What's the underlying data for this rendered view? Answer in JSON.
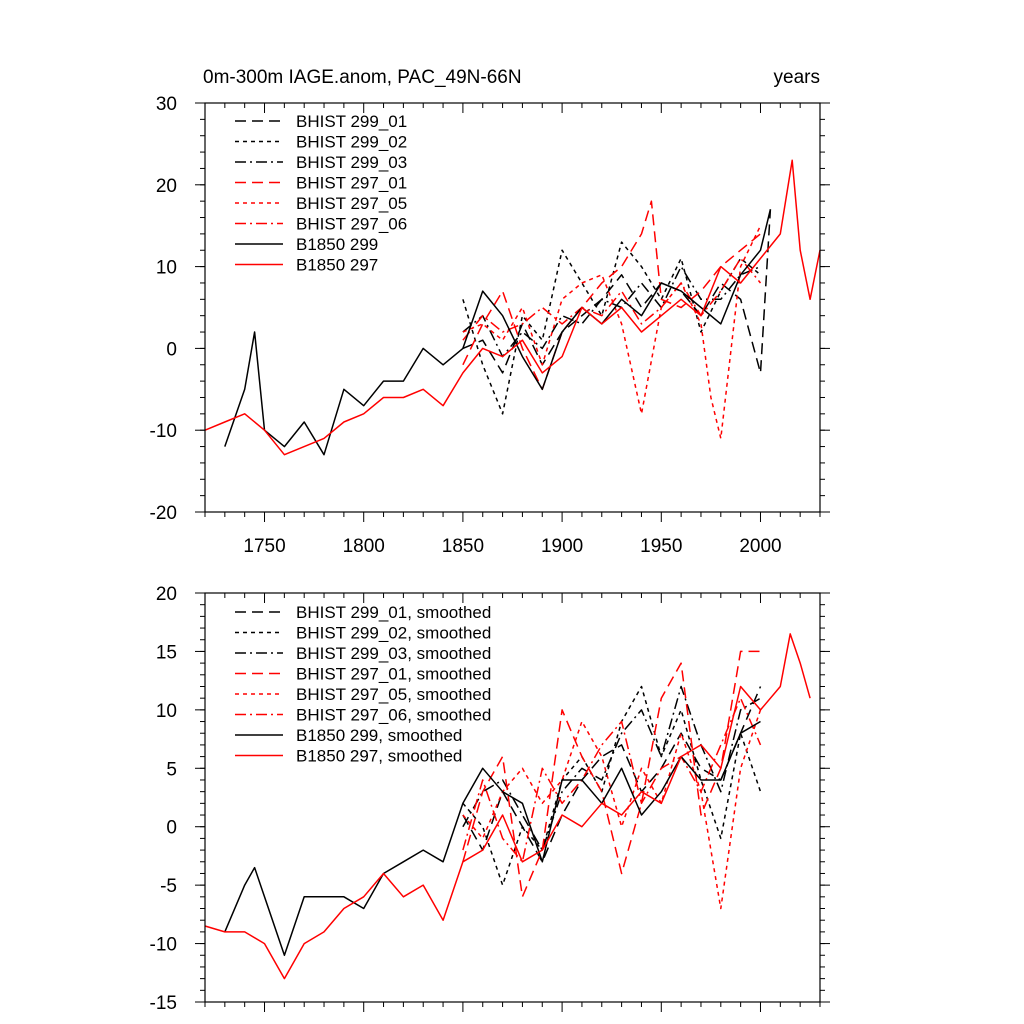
{
  "styles": {
    "line_dashes": {
      "BHIST_299_01": "11,6",
      "BHIST_299_02": "4,4",
      "BHIST_299_03": "11,4,2,4",
      "BHIST_297_01": "11,6",
      "BHIST_297_05": "4,4",
      "BHIST_297_06": "11,4,2,4",
      "B1850_299": "",
      "B1850_297": ""
    },
    "colors": {
      "black": "#000000",
      "red": "#ff0000"
    }
  },
  "chart_data": [
    {
      "type": "line",
      "title": "0m-300m IAGE.anom, PAC_49N-66N",
      "title_right": "years",
      "xlim": [
        1720,
        2030
      ],
      "ylim": [
        -20,
        30
      ],
      "xticks": [
        1750,
        1800,
        1850,
        1900,
        1950,
        2000
      ],
      "xtick_labels": [
        "1750",
        "1800",
        "1850",
        "1900",
        "1950",
        "2000"
      ],
      "yticks": [
        -20,
        -10,
        0,
        10,
        20,
        30
      ],
      "ytick_labels": [
        "-20",
        "-10",
        "0",
        "10",
        "20",
        "30"
      ],
      "legend_position": "top-left",
      "series": [
        {
          "name": "BHIST 299_01",
          "color": "#000000",
          "style": "dashed",
          "x": [
            1850,
            1860,
            1870,
            1880,
            1890,
            1900,
            1910,
            1920,
            1930,
            1940,
            1950,
            1960,
            1970,
            1980,
            1990,
            2000,
            2005
          ],
          "y": [
            0,
            1,
            -3,
            3,
            -2,
            2,
            4,
            6,
            9,
            5,
            8,
            7,
            4,
            8,
            6,
            -3,
            17
          ]
        },
        {
          "name": "BHIST 299_02",
          "color": "#000000",
          "style": "dotted",
          "x": [
            1850,
            1860,
            1870,
            1880,
            1890,
            1900,
            1910,
            1920,
            1930,
            1940,
            1950,
            1960,
            1970,
            1980,
            1990,
            2000
          ],
          "y": [
            6,
            -2,
            -8,
            4,
            1,
            12,
            8,
            4,
            13,
            10,
            6,
            11,
            2,
            7,
            11,
            9
          ]
        },
        {
          "name": "BHIST 299_03",
          "color": "#000000",
          "style": "dashdot",
          "x": [
            1850,
            1860,
            1870,
            1880,
            1890,
            1900,
            1910,
            1920,
            1930,
            1940,
            1950,
            1960,
            1970,
            1980,
            1990,
            2000
          ],
          "y": [
            2,
            4,
            -1,
            2,
            0,
            4,
            3,
            6,
            5,
            8,
            5,
            10,
            6,
            6,
            9,
            10
          ]
        },
        {
          "name": "BHIST 297_01",
          "color": "#ff0000",
          "style": "dashed",
          "x": [
            1850,
            1860,
            1870,
            1880,
            1890,
            1900,
            1910,
            1920,
            1930,
            1940,
            1945,
            1950,
            1960,
            1970,
            1980,
            1990,
            2000
          ],
          "y": [
            -2,
            3,
            7,
            0,
            -5,
            2,
            5,
            8,
            10,
            14,
            18,
            6,
            5,
            7,
            10,
            12,
            14
          ]
        },
        {
          "name": "BHIST 297_05",
          "color": "#ff0000",
          "style": "dotted",
          "x": [
            1850,
            1860,
            1870,
            1880,
            1890,
            1900,
            1910,
            1920,
            1930,
            1940,
            1950,
            1960,
            1970,
            1975,
            1980,
            1990,
            2000
          ],
          "y": [
            2,
            3,
            1,
            5,
            -2,
            6,
            8,
            9,
            3,
            -8,
            5,
            8,
            3,
            -6,
            -11,
            10,
            15
          ]
        },
        {
          "name": "BHIST 297_06",
          "color": "#ff0000",
          "style": "dashdot",
          "x": [
            1850,
            1860,
            1870,
            1880,
            1890,
            1900,
            1910,
            1920,
            1930,
            1940,
            1950,
            1960,
            1970,
            1980,
            1990,
            2000
          ],
          "y": [
            1,
            4,
            2,
            3,
            5,
            3,
            5,
            4,
            7,
            3,
            5,
            8,
            4,
            7,
            11,
            8
          ]
        },
        {
          "name": "B1850 299",
          "color": "#000000",
          "style": "solid",
          "x": [
            1730,
            1740,
            1745,
            1750,
            1760,
            1770,
            1780,
            1790,
            1800,
            1810,
            1820,
            1830,
            1840,
            1850,
            1860,
            1870,
            1880,
            1890,
            1900,
            1910,
            1920,
            1930,
            1940,
            1950,
            1960,
            1970,
            1980,
            1990,
            2000,
            2005
          ],
          "y": [
            -12,
            -5,
            2,
            -10,
            -12,
            -9,
            -13,
            -5,
            -7,
            -4,
            -4,
            0,
            -2,
            0,
            7,
            4,
            -1,
            -5,
            2,
            5,
            3,
            6,
            4,
            8,
            7,
            5,
            3,
            9,
            12,
            17
          ]
        },
        {
          "name": "B1850 297",
          "color": "#ff0000",
          "style": "solid",
          "x": [
            1720,
            1730,
            1740,
            1750,
            1760,
            1770,
            1780,
            1790,
            1800,
            1810,
            1820,
            1830,
            1840,
            1850,
            1860,
            1870,
            1880,
            1890,
            1900,
            1910,
            1920,
            1930,
            1940,
            1950,
            1960,
            1970,
            1980,
            1990,
            2000,
            2010,
            2016,
            2020,
            2025,
            2030
          ],
          "y": [
            -10,
            -9,
            -8,
            -10,
            -13,
            -12,
            -11,
            -9,
            -8,
            -6,
            -6,
            -5,
            -7,
            -3,
            0,
            -1,
            1,
            -3,
            -1,
            5,
            3,
            5,
            2,
            4,
            6,
            4,
            10,
            8,
            11,
            14,
            23,
            12,
            6,
            12
          ]
        }
      ]
    },
    {
      "type": "line",
      "xlim": [
        1720,
        2030
      ],
      "ylim": [
        -15,
        20
      ],
      "xticks": [
        1750,
        1800,
        1850,
        1900,
        1950,
        2000
      ],
      "yticks": [
        -15,
        -10,
        -5,
        0,
        5,
        10,
        15,
        20
      ],
      "ytick_labels": [
        "-15",
        "-10",
        "-5",
        "0",
        "5",
        "10",
        "15",
        "20"
      ],
      "legend_position": "top-left",
      "series": [
        {
          "name": "BHIST 299_01, smoothed",
          "color": "#000000",
          "style": "dashed",
          "x": [
            1850,
            1860,
            1870,
            1880,
            1890,
            1900,
            1910,
            1920,
            1930,
            1940,
            1950,
            1960,
            1970,
            1980,
            1990,
            2000
          ],
          "y": [
            1,
            -2,
            3,
            0,
            -3,
            1,
            4,
            6,
            7,
            3,
            5,
            8,
            5,
            4,
            8,
            12
          ]
        },
        {
          "name": "BHIST 299_02, smoothed",
          "color": "#000000",
          "style": "dotted",
          "x": [
            1850,
            1860,
            1870,
            1880,
            1890,
            1900,
            1910,
            1920,
            1930,
            1940,
            1950,
            1960,
            1970,
            1980,
            1990,
            2000
          ],
          "y": [
            2,
            0,
            -5,
            0,
            -2,
            4,
            6,
            3,
            9,
            12,
            6,
            10,
            4,
            -1,
            8,
            3
          ]
        },
        {
          "name": "BHIST 299_03, smoothed",
          "color": "#000000",
          "style": "dashdot",
          "x": [
            1850,
            1860,
            1870,
            1880,
            1890,
            1900,
            1910,
            1920,
            1930,
            1940,
            1950,
            1960,
            1970,
            1980,
            1990,
            2000
          ],
          "y": [
            0,
            3,
            4,
            1,
            -2,
            3,
            5,
            4,
            8,
            10,
            6,
            12,
            7,
            3,
            10,
            11
          ]
        },
        {
          "name": "BHIST 297_01, smoothed",
          "color": "#ff0000",
          "style": "dashed",
          "x": [
            1850,
            1860,
            1870,
            1880,
            1890,
            1900,
            1910,
            1920,
            1930,
            1940,
            1950,
            1960,
            1970,
            1980,
            1990,
            2000
          ],
          "y": [
            -3,
            3,
            6,
            -6,
            -2,
            10,
            6,
            3,
            -4,
            2,
            11,
            14,
            1,
            5,
            15,
            15
          ]
        },
        {
          "name": "BHIST 297_05, smoothed",
          "color": "#ff0000",
          "style": "dotted",
          "x": [
            1850,
            1860,
            1870,
            1880,
            1890,
            1900,
            1910,
            1920,
            1930,
            1940,
            1950,
            1960,
            1970,
            1980,
            1990,
            2000
          ],
          "y": [
            1,
            -1,
            3,
            5,
            2,
            4,
            9,
            6,
            0,
            5,
            2,
            8,
            3,
            -7,
            5,
            10
          ]
        },
        {
          "name": "BHIST 297_06, smoothed",
          "color": "#ff0000",
          "style": "dashdot",
          "x": [
            1850,
            1860,
            1870,
            1880,
            1890,
            1900,
            1910,
            1920,
            1930,
            1940,
            1950,
            1960,
            1970,
            1980,
            1990,
            2000
          ],
          "y": [
            -2,
            4,
            -1,
            -3,
            5,
            2,
            4,
            7,
            9,
            2,
            5,
            6,
            3,
            7,
            11,
            7
          ]
        },
        {
          "name": "B1850 299, smoothed",
          "color": "#000000",
          "style": "solid",
          "x": [
            1730,
            1740,
            1745,
            1750,
            1760,
            1770,
            1780,
            1790,
            1800,
            1810,
            1820,
            1830,
            1840,
            1850,
            1860,
            1870,
            1880,
            1890,
            1900,
            1910,
            1920,
            1930,
            1940,
            1950,
            1960,
            1970,
            1980,
            1990,
            2000
          ],
          "y": [
            -9,
            -5,
            -3.5,
            -6,
            -11,
            -6,
            -6,
            -6,
            -7,
            -4,
            -3,
            -2,
            -3,
            2,
            5,
            3,
            2,
            -3,
            4,
            4,
            2,
            5,
            1,
            3,
            6,
            4,
            4,
            8,
            9
          ]
        },
        {
          "name": "B1850 297, smoothed",
          "color": "#ff0000",
          "style": "solid",
          "x": [
            1720,
            1730,
            1740,
            1750,
            1760,
            1770,
            1780,
            1790,
            1800,
            1810,
            1820,
            1830,
            1840,
            1850,
            1860,
            1870,
            1880,
            1890,
            1900,
            1910,
            1920,
            1930,
            1940,
            1950,
            1960,
            1970,
            1980,
            1990,
            2000,
            2010,
            2015,
            2020,
            2025
          ],
          "y": [
            -8.5,
            -9,
            -9,
            -10,
            -13,
            -10,
            -9,
            -7,
            -6,
            -4,
            -6,
            -5,
            -8,
            -3,
            -2,
            1,
            -3,
            -2,
            1,
            0,
            2,
            1,
            3,
            2,
            6,
            7,
            5,
            12,
            10,
            12,
            16.5,
            14,
            11
          ]
        }
      ]
    }
  ]
}
